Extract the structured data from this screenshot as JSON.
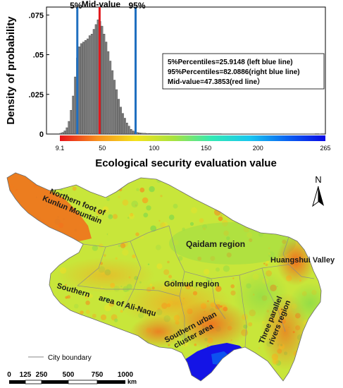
{
  "histogram": {
    "ylabel": "Density of probability",
    "xlabel": "Ecological security evaluation value",
    "y_ticks": [
      "0",
      ".025",
      ".05",
      ".075"
    ],
    "x_ticks": [
      "9.1",
      "50",
      "100",
      "150",
      "200",
      "265"
    ],
    "x_tick_values": [
      9.1,
      50,
      100,
      150,
      200,
      265
    ],
    "x_range": [
      9.1,
      265
    ],
    "y_range": [
      0,
      0.08
    ],
    "markers": [
      {
        "label": "5%",
        "value": 25.9148,
        "color": "#1f6fc0"
      },
      {
        "label": "Mid-value",
        "value": 47.3853,
        "color": "#e0181d"
      },
      {
        "label": "95%",
        "value": 82.0886,
        "color": "#1f6fc0"
      }
    ],
    "stats_lines": [
      "5%Percentiles=25.9148 (left blue line)",
      "95%Percentiles=82.0886(right blue line)",
      "Mid-value=47.3853(red line）"
    ],
    "bar_color": "#7f7f7f",
    "colorbar": [
      "#e8131b",
      "#f7921e",
      "#f4e21c",
      "#a8e33f",
      "#33e9b4",
      "#19c7ef",
      "#0a62f2",
      "#0909e4"
    ]
  },
  "chart_data": {
    "type": "bar",
    "title": "",
    "xlabel": "Ecological security evaluation value",
    "ylabel": "Density of probability",
    "ylim": [
      0,
      0.08
    ],
    "xlim": [
      9.1,
      265
    ],
    "x": [
      10,
      12,
      14,
      16,
      18,
      20,
      22,
      24,
      26,
      28,
      30,
      32,
      34,
      36,
      38,
      40,
      42,
      44,
      46,
      48,
      50,
      52,
      54,
      56,
      58,
      60,
      62,
      64,
      66,
      68,
      70,
      72,
      74,
      76,
      78,
      80,
      82,
      84,
      86,
      88,
      90,
      95,
      100,
      110,
      120,
      130,
      140,
      150,
      160,
      170,
      180,
      190,
      200,
      210,
      220,
      230,
      240,
      250,
      260
    ],
    "values": [
      0.0005,
      0.001,
      0.002,
      0.004,
      0.008,
      0.015,
      0.024,
      0.036,
      0.048,
      0.055,
      0.057,
      0.058,
      0.059,
      0.06,
      0.062,
      0.063,
      0.066,
      0.069,
      0.072,
      0.071,
      0.068,
      0.063,
      0.058,
      0.052,
      0.046,
      0.04,
      0.034,
      0.028,
      0.022,
      0.017,
      0.013,
      0.01,
      0.007,
      0.005,
      0.003,
      0.002,
      0.0015,
      0.001,
      0.0008,
      0.0006,
      0.0005,
      0.0004,
      0.0003,
      0.0003,
      0.0002,
      0.0002,
      0.0002,
      0.0002,
      0.0002,
      0.0001,
      0.0001,
      0.0001,
      0.0001,
      0.0001,
      0.0001,
      0.0001,
      0.0001,
      0.0001,
      0.0001
    ]
  },
  "map": {
    "regions": [
      {
        "id": "northern-foot-kunlun",
        "lines": [
          "Northern foot of",
          "Kunlun Mountain"
        ]
      },
      {
        "id": "qaidam",
        "lines": [
          "Qaidam region"
        ]
      },
      {
        "id": "huangshui",
        "lines": [
          "Huangshui Valley"
        ]
      },
      {
        "id": "golmud",
        "lines": [
          "Golmud region"
        ]
      },
      {
        "id": "southern-ali-naqu",
        "lines": [
          "Southern",
          "area of Ali-Naqu"
        ]
      },
      {
        "id": "southern-urban",
        "lines": [
          "Southern urban",
          "cluster area"
        ]
      },
      {
        "id": "three-parallel",
        "lines": [
          "Three parallel",
          "rivers region"
        ]
      }
    ],
    "north_label": "N",
    "legend_label": "City boundary",
    "scale_ticks": [
      "0",
      "125",
      "250",
      "500",
      "750",
      "1000"
    ],
    "scale_unit": "km"
  }
}
